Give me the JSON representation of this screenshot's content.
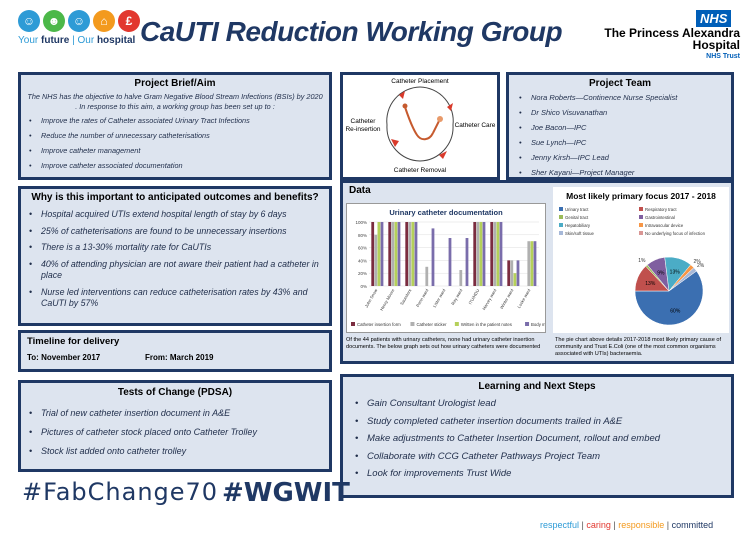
{
  "header": {
    "tagline_a": "Your",
    "tagline_b": "future",
    "tagline_c": " | Our",
    "tagline_d": "hospital",
    "title": "CaUTI Reduction Working Group",
    "nhs_badge": "NHS",
    "trust_line1": "The Princess Alexandra",
    "trust_line2": "Hospital",
    "trust_line3": "NHS Trust",
    "logo_colors": [
      "#2e9bd6",
      "#4cb849",
      "#2e9bd6",
      "#f39a1e",
      "#e2382f"
    ]
  },
  "brief": {
    "title": "Project Brief/Aim",
    "intro": "The NHS has the objective to halve Gram Negative Blood Stream Infections (BSIs) by 2020 . In response to this aim, a working group has been set up to :",
    "items": [
      "Improve the rates of Catheter associated Urinary Tract Infections",
      "Reduce the number of unnecessary catheterisations",
      "Improve catheter management",
      "Improve catheter associated documentation"
    ]
  },
  "cycle": {
    "placement": "Catheter Placement",
    "reinsertion_a": "Catheter",
    "reinsertion_b": "Re-insertion",
    "care": "Catheter Care",
    "removal": "Catheter Removal"
  },
  "team": {
    "title": "Project Team",
    "members": [
      "Nora Roberts—Continence Nurse Specialist",
      "Dr Shico Visuvanathan",
      "Joe Bacon—IPC",
      "Sue Lynch—IPC",
      "Jenny Kirsh—IPC Lead",
      "Sher Kayani—Project Manager"
    ]
  },
  "why": {
    "title": "Why is this important to anticipated outcomes and benefits?",
    "items": [
      "Hospital acquired UTIs extend hospital length of stay by 6 days",
      "25% of catheterisations are found to be unnecessary insertions",
      "There is a 13-30% mortality rate for CaUTIs",
      "40% of attending physician are not aware their patient had a catheter in place",
      "Nurse led interventions can reduce catheterisation rates by 43% and CaUTI by 57%"
    ]
  },
  "data_panel": {
    "title": "Data",
    "bar_note": "Of the 44 patients with urinary catheters, none had urinary catheter insertion documents. The below graph sets out how urinary catheters were documented",
    "pie_note": "The pie chart above details 2017-2018 most likely primary cause of community and Trust E.Coli (one of the most common organisms associated with UTIs) bacteraemia."
  },
  "timeline": {
    "title": "Timeline for delivery",
    "to": "To: November 2017",
    "from": "From: March 2019"
  },
  "tests": {
    "title": "Tests of Change (PDSA)",
    "items": [
      "Trial of new catheter insertion document in A&E",
      "Pictures of catheter stock placed onto Catheter Trolley",
      "Stock list added onto catheter trolley"
    ]
  },
  "learning": {
    "title": "Learning and Next Steps",
    "items": [
      "Gain Consultant Urologist lead",
      "Study completed catheter insertion documents trailed in A&E",
      "Make adjustments to Catheter Insertion Document, rollout and embed",
      "Collaborate with CCG Catheter Pathways Project Team",
      "Look for improvements Trust Wide"
    ]
  },
  "hashtags": {
    "fab": "#FabChange70",
    "wgwit": "#WGWIT"
  },
  "values": {
    "v1": "respectful",
    "sep": " | ",
    "v2": "caring",
    "v3": "responsible",
    "v4": "committed"
  },
  "chart_data": [
    {
      "type": "bar",
      "title": "Urinary catheter documentation",
      "categories": [
        "John Snow",
        "Henry Moore",
        "Saunders",
        "Penn ward",
        "Lister ward",
        "Ray ward",
        "ITU/HDU",
        "Harvey ward",
        "Winter ward",
        "Locke ward"
      ],
      "ylim": [
        0,
        100
      ],
      "yticks": [
        "100%",
        "80%",
        "60%",
        "40%",
        "20%",
        "0%"
      ],
      "series": [
        {
          "name": "Catheter insertion form",
          "color": "#7b2c3f",
          "values": [
            100,
            100,
            100,
            0,
            0,
            0,
            100,
            100,
            40,
            0
          ]
        },
        {
          "name": "Catheter sticker",
          "color": "#b0b0b0",
          "values": [
            80,
            100,
            100,
            30,
            0,
            25,
            100,
            100,
            40,
            70
          ]
        },
        {
          "name": "Written in the patient notes",
          "color": "#b5d05a",
          "values": [
            100,
            100,
            100,
            0,
            0,
            0,
            100,
            100,
            20,
            70
          ]
        },
        {
          "name": "Body map",
          "color": "#7a6dab",
          "values": [
            100,
            100,
            100,
            90,
            75,
            75,
            100,
            100,
            40,
            70
          ]
        }
      ]
    },
    {
      "type": "pie",
      "title": "Most likely primary focus 2017 - 2018",
      "legend": [
        {
          "label": "Urinary tract",
          "color": "#3b6fb1"
        },
        {
          "label": "Respiratory tract",
          "color": "#c0504d"
        },
        {
          "label": "Genital tract",
          "color": "#9bbb59"
        },
        {
          "label": "Gastrointestinal",
          "color": "#7f5fa0"
        },
        {
          "label": "Hepatobiliary",
          "color": "#4bacc6"
        },
        {
          "label": "Intravascular device",
          "color": "#f79646"
        },
        {
          "label": "Skin/soft tissue",
          "color": "#a6b8d8"
        },
        {
          "label": "No underlying focus of infection",
          "color": "#d99694"
        }
      ],
      "values": [
        60,
        13,
        1,
        9,
        13,
        2,
        2,
        0
      ],
      "labels": [
        "60%",
        "13%",
        "1%",
        "9%",
        "13%",
        "2%",
        "2%",
        ""
      ]
    }
  ]
}
